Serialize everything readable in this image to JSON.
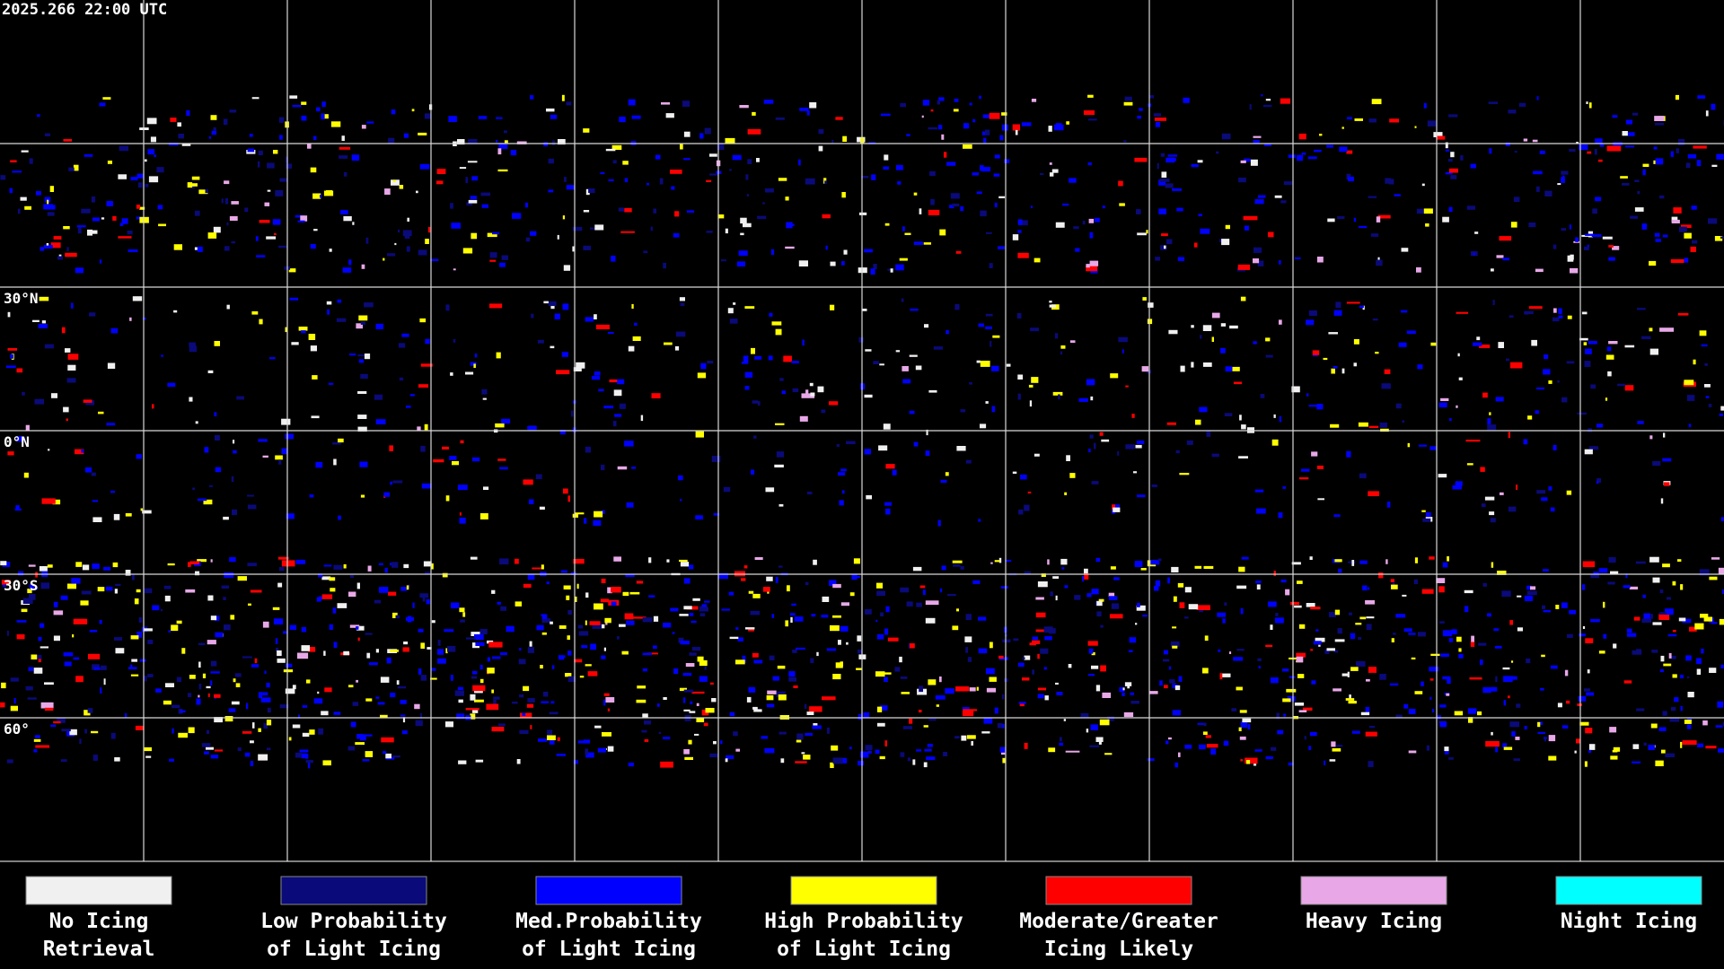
{
  "header": {
    "timestamp": "2025.266 22:00 UTC"
  },
  "grid": {
    "latitude_labels": [
      "30°N",
      "0°N",
      "30°S",
      "60°"
    ]
  },
  "legend": [
    {
      "label_lines": [
        "No Icing",
        "Retrieval"
      ],
      "color": "#f0f0f0"
    },
    {
      "label_lines": [
        "Low Probability",
        "of Light Icing"
      ],
      "color": "#0a0a7a"
    },
    {
      "label_lines": [
        "Med.Probability",
        "of Light Icing"
      ],
      "color": "#0000ff"
    },
    {
      "label_lines": [
        "High Probability",
        "of Light Icing"
      ],
      "color": "#ffff00"
    },
    {
      "label_lines": [
        "Moderate/Greater",
        "Icing Likely"
      ],
      "color": "#ff0000"
    },
    {
      "label_lines": [
        "Heavy Icing"
      ],
      "color": "#e8a8e8"
    },
    {
      "label_lines": [
        "Night Icing"
      ],
      "color": "#00ffff"
    }
  ]
}
